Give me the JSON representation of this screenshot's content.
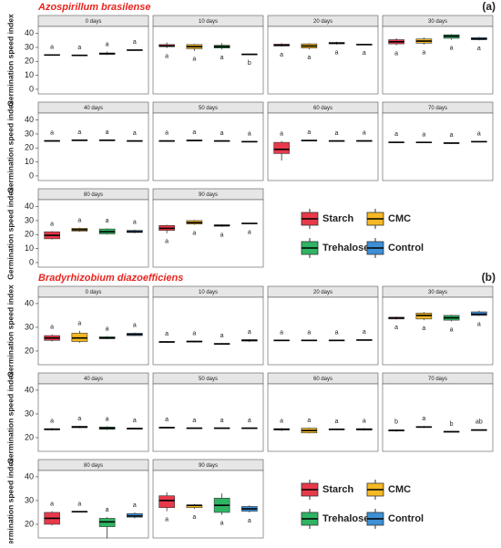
{
  "chart_data": [
    {
      "type": "boxplot",
      "title": "Azospirillum brasilense",
      "tag": "(a)",
      "y_label": "Germination speed index",
      "ylim": [
        -2,
        43
      ],
      "yticks": [
        0,
        10,
        20,
        30,
        40
      ],
      "categories": [
        "0 days",
        "10 days",
        "20 days",
        "30 days",
        "40 days",
        "50 days",
        "60 days",
        "70 days",
        "80 days",
        "90 days"
      ],
      "letters_position": [
        "above",
        "below",
        "below",
        "below",
        "above",
        "above",
        "above",
        "above",
        "above",
        "below"
      ],
      "series": [
        {
          "name": "Starch",
          "color": "#e8394a",
          "letters": [
            "a",
            "a",
            "a",
            "a",
            "a",
            "a",
            "a",
            "a",
            "a",
            "a"
          ],
          "boxes": [
            {
              "min": 24,
              "q1": 24.3,
              "median": 24.5,
              "q3": 24.8,
              "max": 25
            },
            {
              "min": 29.5,
              "q1": 30.5,
              "median": 31,
              "q3": 32,
              "max": 33.5
            },
            {
              "min": 30.5,
              "q1": 31,
              "median": 31.5,
              "q3": 32.3,
              "max": 33
            },
            {
              "min": 31.5,
              "q1": 32.5,
              "median": 34,
              "q3": 35.5,
              "max": 36.5
            },
            {
              "min": 24.5,
              "q1": 24.8,
              "median": 25,
              "q3": 25.3,
              "max": 25.5
            },
            {
              "min": 24.5,
              "q1": 24.8,
              "median": 25,
              "q3": 25.2,
              "max": 25.5
            },
            {
              "min": 11,
              "q1": 16,
              "median": 19,
              "q3": 24,
              "max": 25
            },
            {
              "min": 23.5,
              "q1": 23.8,
              "median": 24,
              "q3": 24.3,
              "max": 24.5
            },
            {
              "min": 16.5,
              "q1": 17,
              "median": 19.5,
              "q3": 22,
              "max": 22.5
            },
            {
              "min": 21,
              "q1": 23,
              "median": 24.5,
              "q3": 26.5,
              "max": 27
            }
          ]
        },
        {
          "name": "CMC",
          "color": "#f5b923",
          "letters": [
            "a",
            "a",
            "a",
            "a",
            "a",
            "a",
            "a",
            "a",
            "a",
            "a"
          ],
          "boxes": [
            {
              "min": 24,
              "q1": 24.1,
              "median": 24.3,
              "q3": 24.5,
              "max": 24.7
            },
            {
              "min": 27.5,
              "q1": 29,
              "median": 30.5,
              "q3": 32,
              "max": 32.5
            },
            {
              "min": 28.5,
              "q1": 29.5,
              "median": 31,
              "q3": 32.5,
              "max": 33
            },
            {
              "min": 32,
              "q1": 33,
              "median": 34.5,
              "q3": 36,
              "max": 37
            },
            {
              "min": 25,
              "q1": 25.2,
              "median": 25.5,
              "q3": 25.8,
              "max": 26
            },
            {
              "min": 24.8,
              "q1": 25,
              "median": 25.3,
              "q3": 25.7,
              "max": 26
            },
            {
              "min": 24.8,
              "q1": 25,
              "median": 25.3,
              "q3": 25.6,
              "max": 25.8
            },
            {
              "min": 23.6,
              "q1": 23.8,
              "median": 24,
              "q3": 24.2,
              "max": 24.4
            },
            {
              "min": 22,
              "q1": 22.5,
              "median": 23.5,
              "q3": 24.5,
              "max": 25
            },
            {
              "min": 27,
              "q1": 27.5,
              "median": 28.5,
              "q3": 30,
              "max": 30.5
            }
          ]
        },
        {
          "name": "Trehalose",
          "color": "#2fb463",
          "letters": [
            "a",
            "a",
            "a",
            "a",
            "a",
            "a",
            "a",
            "a",
            "a",
            "a"
          ],
          "boxes": [
            {
              "min": 24.5,
              "q1": 25,
              "median": 25.5,
              "q3": 26,
              "max": 27
            },
            {
              "min": 28.5,
              "q1": 29.5,
              "median": 30.5,
              "q3": 31.5,
              "max": 33
            },
            {
              "min": 32,
              "q1": 32.5,
              "median": 33,
              "q3": 33.5,
              "max": 34
            },
            {
              "min": 35.5,
              "q1": 36.5,
              "median": 38,
              "q3": 39,
              "max": 39.5
            },
            {
              "min": 25,
              "q1": 25.2,
              "median": 25.5,
              "q3": 25.8,
              "max": 26
            },
            {
              "min": 24.5,
              "q1": 24.7,
              "median": 25,
              "q3": 25.2,
              "max": 25.4
            },
            {
              "min": 24.6,
              "q1": 24.8,
              "median": 25,
              "q3": 25.2,
              "max": 25.4
            },
            {
              "min": 23.2,
              "q1": 23.4,
              "median": 23.5,
              "q3": 23.7,
              "max": 23.9
            },
            {
              "min": 20,
              "q1": 20.5,
              "median": 22,
              "q3": 24,
              "max": 24.5
            },
            {
              "min": 25.5,
              "q1": 26,
              "median": 26.5,
              "q3": 27,
              "max": 27.3
            }
          ]
        },
        {
          "name": "Control",
          "color": "#3d8fd6",
          "letters": [
            "a",
            "b",
            "a",
            "a",
            "a",
            "a",
            "a",
            "a",
            "a",
            "a"
          ],
          "boxes": [
            {
              "min": 27.6,
              "q1": 27.8,
              "median": 28,
              "q3": 28.3,
              "max": 28.5
            },
            {
              "min": 24.7,
              "q1": 24.8,
              "median": 25,
              "q3": 25.2,
              "max": 25.3
            },
            {
              "min": 31.7,
              "q1": 31.8,
              "median": 32,
              "q3": 32.2,
              "max": 32.4
            },
            {
              "min": 35,
              "q1": 35.5,
              "median": 36,
              "q3": 37,
              "max": 37.5
            },
            {
              "min": 24.6,
              "q1": 24.8,
              "median": 25,
              "q3": 25.2,
              "max": 25.4
            },
            {
              "min": 24.2,
              "q1": 24.4,
              "median": 24.5,
              "q3": 24.7,
              "max": 24.9
            },
            {
              "min": 24.6,
              "q1": 24.8,
              "median": 25,
              "q3": 25.3,
              "max": 25.5
            },
            {
              "min": 24.2,
              "q1": 24.4,
              "median": 24.5,
              "q3": 24.7,
              "max": 24.9
            },
            {
              "min": 21,
              "q1": 21.5,
              "median": 22,
              "q3": 23,
              "max": 23.5
            },
            {
              "min": 27.7,
              "q1": 27.8,
              "median": 28,
              "q3": 28.2,
              "max": 28.4
            }
          ]
        }
      ]
    },
    {
      "type": "boxplot",
      "title": "Bradyrhizobium diazoefficiens",
      "tag": "(b)",
      "y_label": "Germination speed index",
      "ylim": [
        15,
        41.5
      ],
      "yticks": [
        20,
        30,
        40
      ],
      "categories": [
        "0 days",
        "10 days",
        "20 days",
        "30 days",
        "40 days",
        "50 days",
        "60 days",
        "70 days",
        "80 days",
        "90 days"
      ],
      "letters_position": [
        "above",
        "above",
        "above",
        "below",
        "above",
        "above",
        "above",
        "above",
        "above",
        "below"
      ],
      "series": [
        {
          "name": "Starch",
          "color": "#e8394a",
          "letters": [
            "a",
            "a",
            "a",
            "a",
            "a",
            "a",
            "a",
            "b",
            "a",
            "a"
          ],
          "boxes": [
            {
              "min": 24,
              "q1": 24.5,
              "median": 25.5,
              "q3": 26.5,
              "max": 27
            },
            {
              "min": 23.5,
              "q1": 23.7,
              "median": 23.8,
              "q3": 24,
              "max": 24.2
            },
            {
              "min": 24.3,
              "q1": 24.4,
              "median": 24.5,
              "q3": 24.6,
              "max": 24.7
            },
            {
              "min": 33.3,
              "q1": 33.5,
              "median": 34,
              "q3": 34.2,
              "max": 34.5
            },
            {
              "min": 23,
              "q1": 23.3,
              "median": 23.5,
              "q3": 23.8,
              "max": 24
            },
            {
              "min": 24,
              "q1": 24.1,
              "median": 24.2,
              "q3": 24.4,
              "max": 24.5
            },
            {
              "min": 22.8,
              "q1": 23.2,
              "median": 23.5,
              "q3": 23.8,
              "max": 24
            },
            {
              "min": 22.5,
              "q1": 22.8,
              "median": 23,
              "q3": 23.3,
              "max": 23.5
            },
            {
              "min": 19.5,
              "q1": 20,
              "median": 22.5,
              "q3": 25,
              "max": 25.5
            },
            {
              "min": 25.5,
              "q1": 27,
              "median": 30,
              "q3": 32,
              "max": 33.5
            }
          ]
        },
        {
          "name": "CMC",
          "color": "#f5b923",
          "letters": [
            "a",
            "a",
            "a",
            "a",
            "a",
            "a",
            "a",
            "a",
            "a",
            "a"
          ],
          "boxes": [
            {
              "min": 23.5,
              "q1": 24,
              "median": 25.5,
              "q3": 27.5,
              "max": 28.5
            },
            {
              "min": 23.6,
              "q1": 23.8,
              "median": 24,
              "q3": 24.2,
              "max": 24.4
            },
            {
              "min": 24.3,
              "q1": 24.4,
              "median": 24.5,
              "q3": 24.6,
              "max": 24.7
            },
            {
              "min": 33,
              "q1": 33.5,
              "median": 35,
              "q3": 36,
              "max": 36.5
            },
            {
              "min": 24,
              "q1": 24.2,
              "median": 24.5,
              "q3": 24.8,
              "max": 25
            },
            {
              "min": 23.8,
              "q1": 23.9,
              "median": 24,
              "q3": 24.1,
              "max": 24.2
            },
            {
              "min": 21.8,
              "q1": 22,
              "median": 23,
              "q3": 24,
              "max": 24.2
            },
            {
              "min": 24.1,
              "q1": 24.3,
              "median": 24.5,
              "q3": 24.7,
              "max": 24.9
            },
            {
              "min": 25.1,
              "q1": 25.2,
              "median": 25.3,
              "q3": 25.4,
              "max": 25.5
            },
            {
              "min": 26.5,
              "q1": 27,
              "median": 28,
              "q3": 28,
              "max": 28.5
            }
          ]
        },
        {
          "name": "Trehalose",
          "color": "#2fb463",
          "letters": [
            "a",
            "a",
            "a",
            "a",
            "a",
            "a",
            "a",
            "b",
            "a",
            "a"
          ],
          "boxes": [
            {
              "min": 25,
              "q1": 25.2,
              "median": 25.5,
              "q3": 26,
              "max": 26.3
            },
            {
              "min": 22.8,
              "q1": 22.9,
              "median": 23,
              "q3": 23.2,
              "max": 23.3
            },
            {
              "min": 24.3,
              "q1": 24.4,
              "median": 24.5,
              "q3": 24.6,
              "max": 24.7
            },
            {
              "min": 32.5,
              "q1": 33,
              "median": 34,
              "q3": 35,
              "max": 35.3
            },
            {
              "min": 23.3,
              "q1": 23.5,
              "median": 24,
              "q3": 24.5,
              "max": 24.8
            },
            {
              "min": 23.8,
              "q1": 23.9,
              "median": 24,
              "q3": 24.1,
              "max": 24.2
            },
            {
              "min": 23.2,
              "q1": 23.3,
              "median": 23.5,
              "q3": 23.7,
              "max": 23.8
            },
            {
              "min": 22.3,
              "q1": 22.4,
              "median": 22.5,
              "q3": 22.6,
              "max": 22.7
            },
            {
              "min": 14,
              "q1": 19,
              "median": 21,
              "q3": 22.5,
              "max": 23
            },
            {
              "min": 24,
              "q1": 25,
              "median": 28,
              "q3": 31,
              "max": 33
            }
          ]
        },
        {
          "name": "Control",
          "color": "#3d8fd6",
          "letters": [
            "a",
            "a",
            "a",
            "a",
            "a",
            "a",
            "a",
            "ab",
            "a",
            "a"
          ],
          "boxes": [
            {
              "min": 26.3,
              "q1": 26.5,
              "median": 27,
              "q3": 27.5,
              "max": 27.8
            },
            {
              "min": 23.8,
              "q1": 24.2,
              "median": 24.5,
              "q3": 24.8,
              "max": 25
            },
            {
              "min": 24.4,
              "q1": 24.5,
              "median": 24.6,
              "q3": 24.8,
              "max": 24.9
            },
            {
              "min": 34.8,
              "q1": 35,
              "median": 35.5,
              "q3": 36.5,
              "max": 37
            },
            {
              "min": 23.5,
              "q1": 23.6,
              "median": 23.8,
              "q3": 24,
              "max": 24.1
            },
            {
              "min": 23.8,
              "q1": 23.9,
              "median": 24,
              "q3": 24.1,
              "max": 24.2
            },
            {
              "min": 23,
              "q1": 23.2,
              "median": 23.5,
              "q3": 23.8,
              "max": 24
            },
            {
              "min": 22.9,
              "q1": 23,
              "median": 23.2,
              "q3": 23.4,
              "max": 23.5
            },
            {
              "min": 22.5,
              "q1": 23,
              "median": 23.5,
              "q3": 24.5,
              "max": 25
            },
            {
              "min": 25,
              "q1": 25.5,
              "median": 26.5,
              "q3": 27.5,
              "max": 28
            }
          ]
        }
      ]
    }
  ]
}
